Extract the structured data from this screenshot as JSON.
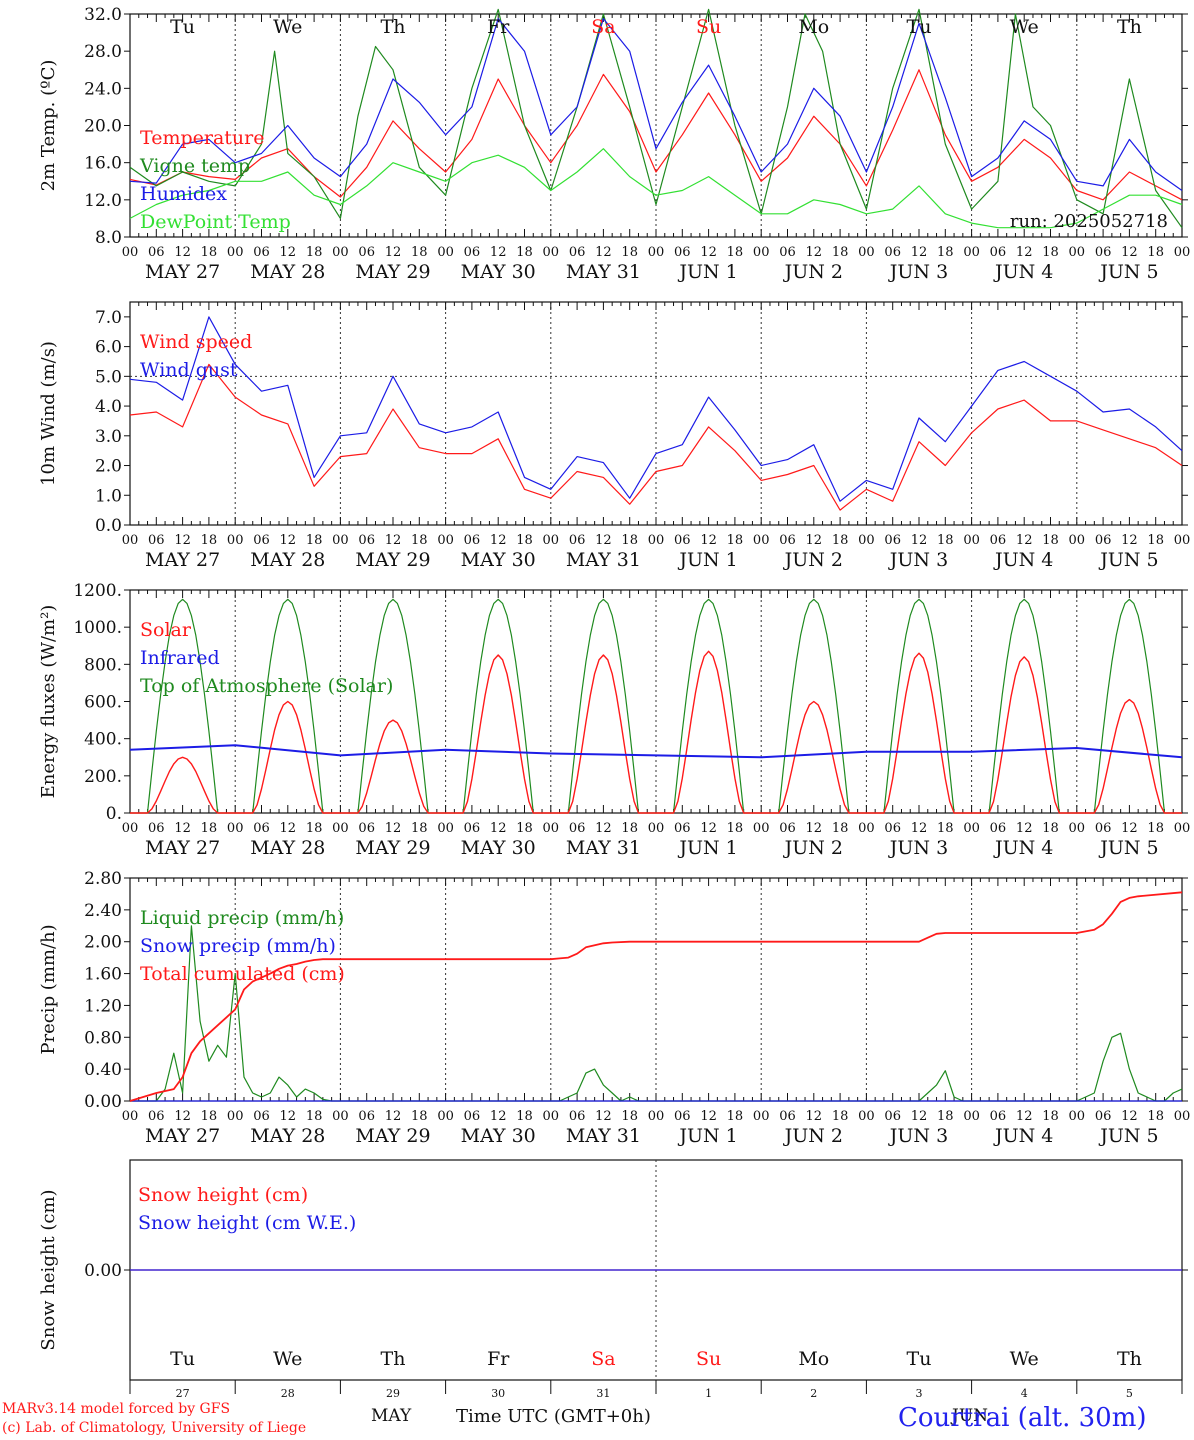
{
  "colors": {
    "red": "#ff1a1a",
    "green": "#1f8a1f",
    "blue": "#1c1ce6",
    "lightgreen": "#33e033",
    "black": "#111111",
    "weekend": "#ff1a1a",
    "location": "#2222ee"
  },
  "axis": {
    "hour_labels": [
      "00",
      "06",
      "12",
      "18"
    ],
    "last_hour_label": "00",
    "date_labels": [
      "MAY 27",
      "MAY 28",
      "MAY 29",
      "MAY 30",
      "MAY 31",
      "JUN  1",
      "JUN  2",
      "JUN  3",
      "JUN  4",
      "JUN  5"
    ],
    "weekdays": [
      "Tu",
      "We",
      "Th",
      "Fr",
      "Sa",
      "Su",
      "Mo",
      "Tu",
      "We",
      "Th"
    ],
    "weekend_days": [
      4,
      5
    ],
    "day_numbers": [
      "27",
      "28",
      "29",
      "30",
      "31",
      "1",
      "2",
      "3",
      "4",
      "5"
    ],
    "month_may": "MAY",
    "month_jun": "JUN",
    "x_title": "Time UTC (GMT+0h)"
  },
  "footer": {
    "model": "MARv3.14 model forced by GFS",
    "lab": "(c) Lab. of Climatology, University of Liege",
    "location": "Courtrai (alt. 30m)"
  },
  "chart_data": [
    {
      "type": "line",
      "ylabel": "2m Temp. (ºC)",
      "ylim": [
        8,
        32
      ],
      "yticks": [
        "8.0",
        "12.0",
        "16.0",
        "20.0",
        "24.0",
        "28.0",
        "32.0"
      ],
      "annotation": "run: 2025052718",
      "grid": "vertical day lines",
      "x_unit": "hours since May 27 00 UTC",
      "legend_position": "upper-left",
      "series": [
        {
          "name": "Temperature",
          "color": "red",
          "x": [
            0,
            6,
            12,
            18,
            24,
            30,
            36,
            42,
            48,
            54,
            60,
            66,
            72,
            78,
            84,
            90,
            96,
            102,
            108,
            114,
            120,
            126,
            132,
            138,
            144,
            150,
            156,
            162,
            168,
            174,
            180,
            186,
            192,
            198,
            204,
            210,
            216,
            222,
            228,
            234,
            240
          ],
          "values": [
            14.2,
            13.6,
            15.0,
            14.5,
            14.2,
            16.5,
            17.5,
            14.5,
            12.3,
            15.5,
            20.5,
            17.5,
            15.0,
            18.5,
            25.0,
            20.0,
            16.0,
            20.0,
            25.5,
            21.5,
            15.0,
            19.0,
            23.5,
            19.0,
            14.0,
            16.5,
            21.0,
            18.0,
            13.5,
            19.5,
            26.0,
            19.0,
            14.0,
            15.5,
            18.5,
            16.5,
            13.0,
            12.0,
            15.0,
            13.5,
            12.0
          ]
        },
        {
          "name": "Vigne temp",
          "color": "green",
          "x": [
            0,
            6,
            12,
            18,
            24,
            30,
            33,
            36,
            42,
            48,
            52,
            56,
            60,
            66,
            72,
            78,
            84,
            90,
            96,
            102,
            108,
            114,
            120,
            126,
            132,
            138,
            144,
            150,
            154,
            158,
            162,
            168,
            174,
            180,
            186,
            192,
            198,
            202,
            206,
            210,
            216,
            222,
            228,
            234,
            240
          ],
          "values": [
            15.5,
            13.5,
            15.0,
            14.0,
            13.5,
            18.0,
            28.0,
            17.0,
            14.5,
            10.0,
            21.0,
            28.5,
            26.0,
            15.5,
            12.5,
            24.0,
            32.5,
            20.0,
            13.0,
            22.0,
            32.0,
            22.0,
            11.5,
            22.0,
            32.5,
            20.0,
            10.5,
            22.0,
            32.0,
            28.0,
            18.0,
            11.0,
            24.0,
            32.5,
            18.0,
            11.0,
            14.0,
            32.0,
            22.0,
            20.0,
            12.0,
            10.5,
            25.0,
            13.0,
            9.0
          ]
        },
        {
          "name": "Humidex",
          "color": "blue",
          "x": [
            0,
            6,
            12,
            18,
            24,
            30,
            36,
            42,
            48,
            54,
            60,
            66,
            72,
            78,
            84,
            90,
            96,
            102,
            108,
            114,
            120,
            126,
            132,
            138,
            144,
            150,
            156,
            162,
            168,
            174,
            180,
            186,
            192,
            198,
            204,
            210,
            216,
            222,
            228,
            234,
            240
          ],
          "values": [
            14.0,
            13.8,
            18.0,
            18.5,
            16.0,
            17.0,
            20.0,
            16.5,
            14.5,
            18.0,
            25.0,
            22.5,
            19.0,
            22.0,
            31.5,
            28.0,
            19.0,
            22.0,
            31.5,
            28.0,
            17.5,
            22.5,
            26.5,
            21.0,
            15.0,
            18.0,
            24.0,
            21.0,
            15.0,
            22.0,
            31.0,
            23.0,
            14.5,
            16.5,
            20.5,
            18.5,
            14.0,
            13.5,
            18.5,
            15.0,
            13.0
          ]
        },
        {
          "name": "DewPoint Temp",
          "color": "lightgreen",
          "x": [
            0,
            6,
            12,
            18,
            24,
            30,
            36,
            42,
            48,
            54,
            60,
            66,
            72,
            78,
            84,
            90,
            96,
            102,
            108,
            114,
            120,
            126,
            132,
            138,
            144,
            150,
            156,
            162,
            168,
            174,
            180,
            186,
            192,
            198,
            204,
            210,
            216,
            222,
            228,
            234,
            240
          ],
          "values": [
            10.0,
            11.5,
            12.5,
            13.0,
            14.0,
            14.0,
            15.0,
            12.5,
            11.5,
            13.5,
            16.0,
            15.0,
            14.0,
            16.0,
            16.8,
            15.5,
            13.0,
            15.0,
            17.5,
            14.5,
            12.5,
            13.0,
            14.5,
            12.5,
            10.5,
            10.5,
            12.0,
            11.5,
            10.5,
            11.0,
            13.5,
            10.5,
            9.5,
            9.0,
            9.0,
            9.0,
            9.5,
            11.0,
            12.5,
            12.5,
            11.5
          ]
        }
      ]
    },
    {
      "type": "line",
      "ylabel": "10m Wind (m/s)",
      "ylim": [
        0,
        7.5
      ],
      "yticks": [
        "0.0",
        "1.0",
        "2.0",
        "3.0",
        "4.0",
        "5.0",
        "6.0",
        "7.0"
      ],
      "reference_line": 5.0,
      "legend_position": "upper-left",
      "series": [
        {
          "name": "Wind speed",
          "color": "red",
          "x": [
            0,
            6,
            12,
            18,
            24,
            30,
            36,
            42,
            48,
            54,
            60,
            66,
            72,
            78,
            84,
            90,
            96,
            102,
            108,
            114,
            120,
            126,
            132,
            138,
            144,
            150,
            156,
            162,
            168,
            174,
            180,
            186,
            192,
            198,
            204,
            210,
            216,
            222,
            228,
            234,
            240
          ],
          "values": [
            3.7,
            3.8,
            3.3,
            5.4,
            4.3,
            3.7,
            3.4,
            1.3,
            2.3,
            2.4,
            3.9,
            2.6,
            2.4,
            2.4,
            2.9,
            1.2,
            0.9,
            1.8,
            1.6,
            0.7,
            1.8,
            2.0,
            3.3,
            2.5,
            1.5,
            1.7,
            2.0,
            0.5,
            1.2,
            0.8,
            2.8,
            2.0,
            3.1,
            3.9,
            4.2,
            3.5,
            3.5,
            3.2,
            2.9,
            2.6,
            2.0
          ]
        },
        {
          "name": "Wind gust",
          "color": "blue",
          "x": [
            0,
            6,
            12,
            18,
            24,
            30,
            36,
            42,
            48,
            54,
            60,
            66,
            72,
            78,
            84,
            90,
            96,
            102,
            108,
            114,
            120,
            126,
            132,
            138,
            144,
            150,
            156,
            162,
            168,
            174,
            180,
            186,
            192,
            198,
            204,
            210,
            216,
            222,
            228,
            234,
            240
          ],
          "values": [
            4.9,
            4.8,
            4.2,
            7.0,
            5.4,
            4.5,
            4.7,
            1.6,
            3.0,
            3.1,
            5.0,
            3.4,
            3.1,
            3.3,
            3.8,
            1.6,
            1.2,
            2.3,
            2.1,
            0.9,
            2.4,
            2.7,
            4.3,
            3.2,
            2.0,
            2.2,
            2.7,
            0.8,
            1.5,
            1.2,
            3.6,
            2.8,
            4.0,
            5.2,
            5.5,
            5.0,
            4.5,
            3.8,
            3.9,
            3.3,
            2.5
          ]
        }
      ]
    },
    {
      "type": "line",
      "ylabel": "Energy fluxes (W/m²)",
      "ylim": [
        0,
        1200
      ],
      "yticks": [
        "0.",
        "200.",
        "400.",
        "600.",
        "800.",
        "1000.",
        "1200."
      ],
      "legend_position": "upper-left",
      "solar_daily_peaks": [
        300,
        600,
        500,
        850,
        850,
        870,
        600,
        860,
        840,
        610
      ],
      "toa_daily_peak": 1150,
      "series": [
        {
          "name": "Solar",
          "color": "red",
          "x": [
            0,
            24,
            48,
            72,
            96,
            120,
            144,
            168,
            192,
            216,
            240
          ],
          "values": [
            0,
            0,
            0,
            0,
            0,
            0,
            0,
            0,
            0,
            0,
            0
          ]
        },
        {
          "name": "Infrared",
          "color": "blue",
          "x": [
            0,
            24,
            48,
            72,
            96,
            120,
            144,
            168,
            192,
            216,
            240
          ],
          "values": [
            340,
            365,
            310,
            340,
            320,
            310,
            300,
            330,
            330,
            350,
            300
          ]
        },
        {
          "name": "Top of Atmosphere (Solar)",
          "color": "green",
          "x": [
            0,
            24,
            48,
            72,
            96,
            120,
            144,
            168,
            192,
            216,
            240
          ],
          "values": [
            0,
            0,
            0,
            0,
            0,
            0,
            0,
            0,
            0,
            0,
            0
          ]
        }
      ]
    },
    {
      "type": "line",
      "ylabel": "Precip (mm/h)",
      "ylim": [
        0,
        2.8
      ],
      "yticks": [
        "0.00",
        "0.40",
        "0.80",
        "1.20",
        "1.60",
        "2.00",
        "2.40",
        "2.80"
      ],
      "legend_position": "upper-left",
      "series": [
        {
          "name": "Liquid precip (mm/h)",
          "color": "green",
          "x": [
            0,
            6,
            8,
            10,
            12,
            14,
            16,
            18,
            20,
            22,
            24,
            26,
            28,
            30,
            32,
            34,
            36,
            38,
            40,
            42,
            44,
            46,
            48,
            96,
            98,
            100,
            102,
            104,
            106,
            108,
            110,
            112,
            114,
            116,
            118,
            120,
            180,
            182,
            184,
            186,
            188,
            190,
            192,
            216,
            218,
            220,
            222,
            224,
            226,
            228,
            230,
            232,
            234,
            236,
            238,
            240
          ],
          "values": [
            0,
            0,
            0.15,
            0.6,
            0.1,
            2.2,
            1.0,
            0.5,
            0.7,
            0.55,
            1.6,
            0.3,
            0.1,
            0.05,
            0.1,
            0.3,
            0.2,
            0.05,
            0.15,
            0.1,
            0.02,
            0,
            0,
            0,
            0,
            0.05,
            0.1,
            0.35,
            0.4,
            0.2,
            0.1,
            0,
            0.05,
            0,
            0,
            0,
            0,
            0.1,
            0.2,
            0.38,
            0.05,
            0,
            0,
            0,
            0.05,
            0.1,
            0.5,
            0.8,
            0.85,
            0.4,
            0.1,
            0.05,
            0,
            0,
            0.1,
            0.15
          ]
        },
        {
          "name": "Snow precip (mm/h)",
          "color": "blue",
          "x": [
            0,
            240
          ],
          "values": [
            0,
            0
          ]
        },
        {
          "name": "Total cumulated (cm)",
          "color": "red",
          "x": [
            0,
            6,
            10,
            12,
            14,
            16,
            18,
            20,
            22,
            24,
            26,
            28,
            30,
            32,
            34,
            36,
            38,
            40,
            42,
            44,
            48,
            96,
            98,
            100,
            102,
            104,
            108,
            110,
            114,
            120,
            180,
            182,
            184,
            186,
            190,
            216,
            220,
            222,
            224,
            226,
            228,
            230,
            232,
            240
          ],
          "values": [
            0,
            0.1,
            0.15,
            0.3,
            0.6,
            0.75,
            0.85,
            0.95,
            1.05,
            1.15,
            1.4,
            1.5,
            1.55,
            1.6,
            1.66,
            1.7,
            1.72,
            1.75,
            1.77,
            1.78,
            1.78,
            1.78,
            1.79,
            1.8,
            1.85,
            1.93,
            1.98,
            1.99,
            2.0,
            2.0,
            2.0,
            2.05,
            2.1,
            2.11,
            2.11,
            2.11,
            2.15,
            2.22,
            2.35,
            2.5,
            2.55,
            2.57,
            2.58,
            2.62
          ]
        }
      ]
    },
    {
      "type": "line",
      "ylabel": "Snow height (cm)",
      "ylim": [
        -1,
        1
      ],
      "yticks": [
        "0.00"
      ],
      "legend_position": "upper-left",
      "series": [
        {
          "name": "Snow height (cm)",
          "color": "red",
          "x": [
            0,
            240
          ],
          "values": [
            0,
            0
          ]
        },
        {
          "name": "Snow height (cm W.E.)",
          "color": "blue",
          "x": [
            0,
            240
          ],
          "values": [
            0,
            0
          ]
        }
      ]
    }
  ]
}
